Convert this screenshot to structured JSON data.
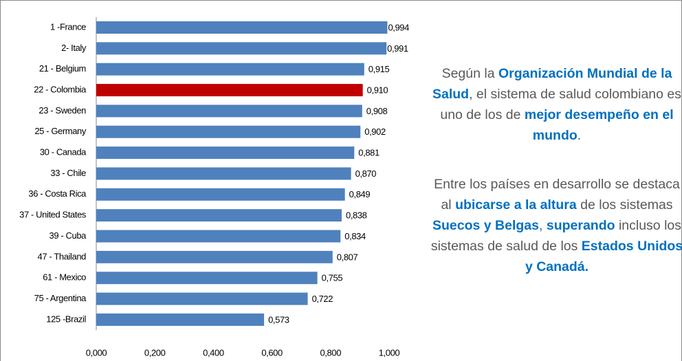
{
  "chart_data": {
    "type": "hbar",
    "categories": [
      "1 -France",
      "2- Italy",
      "21 - Belgium",
      "22 - Colombia",
      "23 - Sweden",
      "25 - Germany",
      "30 - Canada",
      "33 - Chile",
      "36 - Costa Rica",
      "37 - United States",
      "39 - Cuba",
      "47 - Thailand",
      "61 - Mexico",
      "75 - Argentina",
      "125 -Brazil"
    ],
    "values": [
      0.994,
      0.991,
      0.915,
      0.91,
      0.908,
      0.902,
      0.881,
      0.87,
      0.849,
      0.838,
      0.834,
      0.807,
      0.755,
      0.722,
      0.573
    ],
    "value_labels": [
      "0,994",
      "0,991",
      "0,915",
      "0,910",
      "0,908",
      "0,902",
      "0,881",
      "0,870",
      "0,849",
      "0,838",
      "0,834",
      "0,807",
      "0,755",
      "0,722",
      "0,573"
    ],
    "colors": [
      "#4f81bd",
      "#4f81bd",
      "#4f81bd",
      "#c00000",
      "#4f81bd",
      "#4f81bd",
      "#4f81bd",
      "#4f81bd",
      "#4f81bd",
      "#4f81bd",
      "#4f81bd",
      "#4f81bd",
      "#4f81bd",
      "#4f81bd",
      "#4f81bd"
    ],
    "xlim": [
      0,
      1
    ],
    "xticks": [
      {
        "value": 0,
        "label": "0,000"
      },
      {
        "value": 0.2,
        "label": "0,200"
      },
      {
        "value": 0.4,
        "label": "0,400"
      },
      {
        "value": 0.6,
        "label": "0,600"
      },
      {
        "value": 0.8,
        "label": "0,800"
      },
      {
        "value": 1,
        "label": "1,000"
      }
    ]
  },
  "text_panel": {
    "paragraphs": [
      [
        {
          "text": "Según la ",
          "bold": false
        },
        {
          "text": "Organización Mundial de la Salud",
          "bold": true
        },
        {
          "text": ", el sistema de salud colombiano es uno de los de ",
          "bold": false
        },
        {
          "text": "mejor desempeño en el mundo",
          "bold": true
        },
        {
          "text": ".",
          "bold": false
        }
      ],
      [
        {
          "text": "Entre los países en desarrollo se destaca al ",
          "bold": false
        },
        {
          "text": "ubicarse a la altura",
          "bold": true
        },
        {
          "text": " de los sistemas ",
          "bold": false
        },
        {
          "text": "Suecos y Belgas",
          "bold": true
        },
        {
          "text": ", ",
          "bold": false
        },
        {
          "text": "superando",
          "bold": true
        },
        {
          "text": " incluso los sistemas de salud de los ",
          "bold": false
        },
        {
          "text": "Estados Unidos y Canadá.",
          "bold": true
        }
      ]
    ]
  }
}
